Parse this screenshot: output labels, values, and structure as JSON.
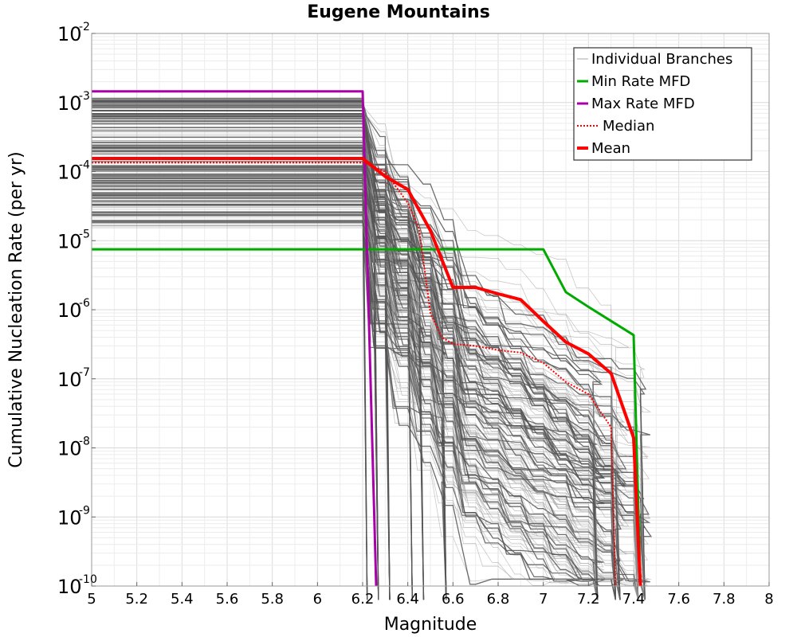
{
  "chart_data": {
    "type": "line",
    "title": "Eugene Mountains",
    "xlabel": "Magnitude",
    "ylabel": "Cumulative Nucleation Rate (per yr)",
    "xlim": [
      5,
      8
    ],
    "ylim": [
      1e-10,
      0.01
    ],
    "yscale": "log",
    "xticks": [
      "5",
      "5.2",
      "5.4",
      "5.6",
      "5.8",
      "6",
      "6.2",
      "6.4",
      "6.6",
      "6.8",
      "7",
      "7.2",
      "7.4",
      "7.6",
      "7.8",
      "8"
    ],
    "yticks": [
      {
        "base": "10",
        "exp": "-10",
        "value": 1e-10
      },
      {
        "base": "10",
        "exp": "-9",
        "value": 1e-09
      },
      {
        "base": "10",
        "exp": "-8",
        "value": 1e-08
      },
      {
        "base": "10",
        "exp": "-7",
        "value": 1e-07
      },
      {
        "base": "10",
        "exp": "-6",
        "value": 1e-06
      },
      {
        "base": "10",
        "exp": "-5",
        "value": 1e-05
      },
      {
        "base": "10",
        "exp": "-4",
        "value": 0.0001
      },
      {
        "base": "10",
        "exp": "-3",
        "value": 0.001
      },
      {
        "base": "10",
        "exp": "-2",
        "value": 0.01
      }
    ],
    "grid": true,
    "legend_position": "top-right",
    "series": [
      {
        "name": "Min Rate MFD",
        "color": "#00aa00",
        "x": [
          5.0,
          7.0,
          7.1,
          7.2,
          7.4,
          7.43
        ],
        "y": [
          7.5e-06,
          7.5e-06,
          1.8e-06,
          1.1e-06,
          4.3e-07,
          1e-10
        ]
      },
      {
        "name": "Max Rate MFD",
        "color": "#aa00aa",
        "x": [
          5.0,
          6.2,
          6.26
        ],
        "y": [
          0.00145,
          0.00145,
          1e-10
        ]
      },
      {
        "name": "Median",
        "color": "#ff0000",
        "dashed": true,
        "x": [
          5.0,
          6.2,
          6.3,
          6.4,
          6.45,
          6.5,
          6.55,
          6.6,
          6.7,
          6.8,
          6.9,
          7.0,
          7.1,
          7.2,
          7.3,
          7.32
        ],
        "y": [
          0.000135,
          0.000135,
          0.0001,
          3.5e-05,
          1.5e-05,
          9e-07,
          4e-07,
          3.2e-07,
          3e-07,
          2.6e-07,
          2.4e-07,
          1.7e-07,
          9e-08,
          6e-08,
          2e-08,
          1e-10
        ]
      },
      {
        "name": "Mean",
        "color": "#ff0000",
        "x": [
          5.0,
          6.2,
          6.3,
          6.4,
          6.5,
          6.6,
          6.7,
          6.8,
          6.9,
          7.0,
          7.1,
          7.2,
          7.3,
          7.4,
          7.43
        ],
        "y": [
          0.000155,
          0.000155,
          8.5e-05,
          5.5e-05,
          1.4e-05,
          2.1e-06,
          2.1e-06,
          1.7e-06,
          1.4e-06,
          6.8e-07,
          3.4e-07,
          2.3e-07,
          1.2e-07,
          1.4e-08,
          1e-10
        ]
      }
    ],
    "individual_branches": {
      "name": "Individual Branches",
      "color": "#555555",
      "plateau_rate_range": [
        1.5e-05,
        0.0012
      ],
      "step_magnitudes": [
        6.2,
        6.3,
        6.4,
        6.5,
        6.6,
        6.7,
        6.8,
        6.9,
        7.0,
        7.1,
        7.2,
        7.3,
        7.4
      ],
      "cutoff_magnitudes": [
        6.2,
        6.25,
        6.3,
        6.4,
        6.45,
        6.55,
        7.22,
        7.3,
        7.32,
        7.4,
        7.43
      ],
      "count": 220
    },
    "legend": [
      {
        "label": "Individual Branches",
        "color": "#aaaaaa",
        "style": "thin"
      },
      {
        "label": "Min Rate MFD",
        "color": "#00aa00",
        "style": "solid"
      },
      {
        "label": "Max Rate MFD",
        "color": "#aa00aa",
        "style": "solid"
      },
      {
        "label": "Median",
        "color": "#ff0000",
        "style": "dotted"
      },
      {
        "label": "Mean",
        "color": "#ff0000",
        "style": "thick"
      }
    ]
  }
}
